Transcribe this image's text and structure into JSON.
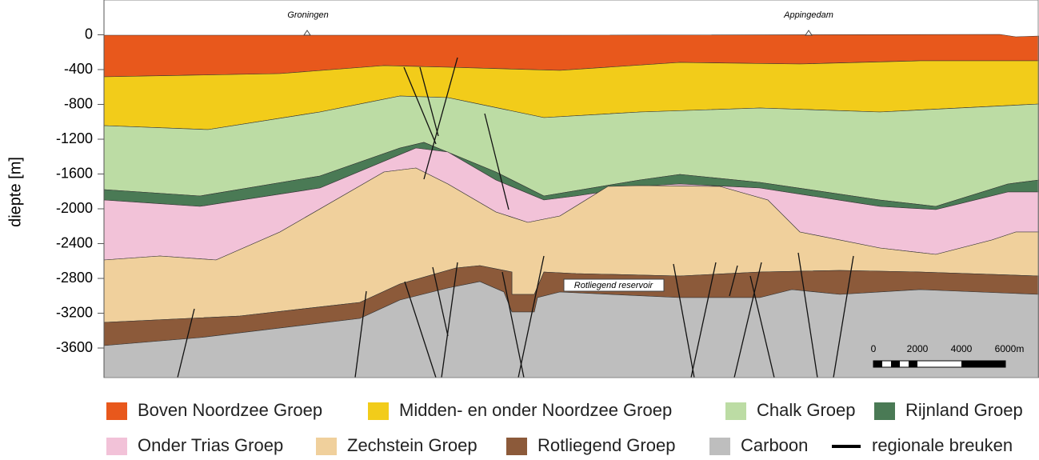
{
  "depth_axis": {
    "label": "diepte [m]",
    "ylim": [
      -3940,
      400
    ],
    "yticks": [
      0,
      -400,
      -800,
      -1200,
      -1600,
      -2000,
      -2400,
      -2800,
      -3200,
      -3600
    ]
  },
  "place_labels": [
    "Groningen",
    "Appingedam"
  ],
  "annotation": "Rotliegend reservoir",
  "scale_bar": {
    "labels": [
      "0",
      "2000",
      "4000",
      "6000m"
    ]
  },
  "legend": [
    {
      "name": "Boven Noordzee Groep",
      "color": "#e8581c"
    },
    {
      "name": "Midden- en onder Noordzee Groep",
      "color": "#f2cc1a"
    },
    {
      "name": "Chalk Groep",
      "color": "#bcdca4"
    },
    {
      "name": "Rijnland Groep",
      "color": "#4a7a55"
    },
    {
      "name": "Onder Trias Groep",
      "color": "#f2c2d8"
    },
    {
      "name": "Zechstein Groep",
      "color": "#f0d09c"
    },
    {
      "name": "Rotliegend Groep",
      "color": "#8c5a3a"
    },
    {
      "name": "Carboon",
      "color": "#bebebe"
    },
    {
      "name": "regionale breuken",
      "color": "#000000"
    }
  ]
}
